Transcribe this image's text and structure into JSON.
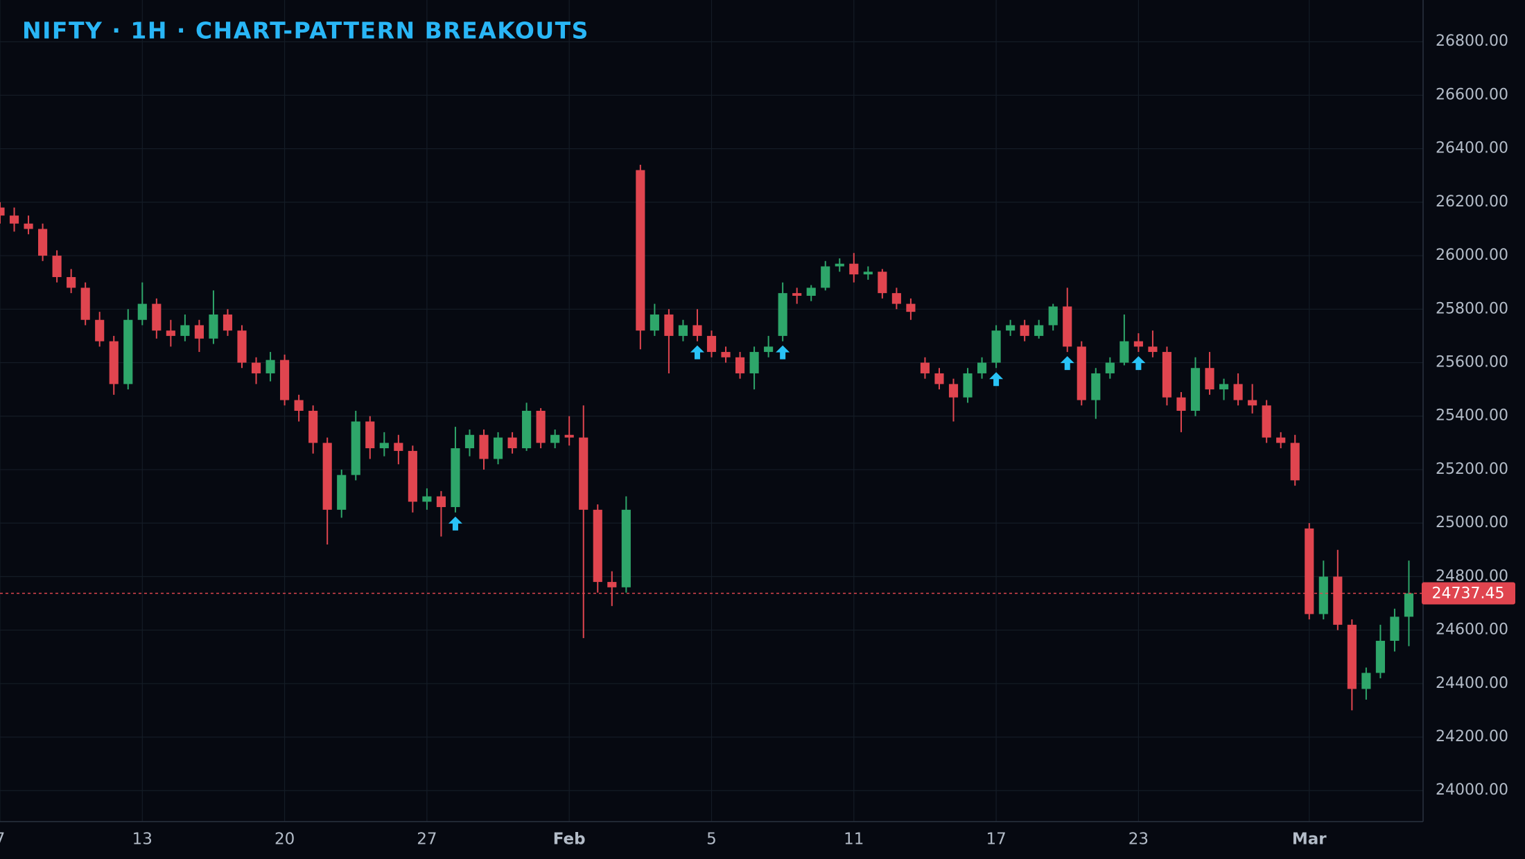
{
  "chart_data": {
    "type": "candlestick",
    "title": "NIFTY · 1H · CHART-PATTERN BREAKOUTS",
    "up_color": "#2ea66a",
    "down_color": "#e0454f",
    "signal_color": "#29c3f6",
    "xlim": [
      0,
      100
    ],
    "xticks": [
      {
        "value": 0,
        "label": "7"
      },
      {
        "value": 10,
        "label": "13"
      },
      {
        "value": 20,
        "label": "20"
      },
      {
        "value": 30,
        "label": "27"
      },
      {
        "value": 40,
        "label": "Feb"
      },
      {
        "value": 50,
        "label": "5"
      },
      {
        "value": 60,
        "label": "11"
      },
      {
        "value": 70,
        "label": "17"
      },
      {
        "value": 80,
        "label": "23"
      },
      {
        "value": 92,
        "label": "Mar"
      }
    ],
    "ylim": [
      23884,
      26956
    ],
    "yticks": [
      {
        "value": 24000,
        "label": "24000.00"
      },
      {
        "value": 24200,
        "label": "24200.00"
      },
      {
        "value": 24400,
        "label": "24400.00"
      },
      {
        "value": 24600,
        "label": "24600.00"
      },
      {
        "value": 24800,
        "label": "24800.00"
      },
      {
        "value": 25000,
        "label": "25000.00"
      },
      {
        "value": 25200,
        "label": "25200.00"
      },
      {
        "value": 25400,
        "label": "25400.00"
      },
      {
        "value": 25600,
        "label": "25600.00"
      },
      {
        "value": 25800,
        "label": "25800.00"
      },
      {
        "value": 26000,
        "label": "26000.00"
      },
      {
        "value": 26200,
        "label": "26200.00"
      },
      {
        "value": 26400,
        "label": "26400.00"
      },
      {
        "value": 26600,
        "label": "26600.00"
      },
      {
        "value": 26800,
        "label": "26800.00"
      }
    ],
    "grid": true,
    "ohlc": [
      [
        26180,
        26200,
        26120,
        26150
      ],
      [
        26150,
        26180,
        26090,
        26120
      ],
      [
        26120,
        26150,
        26080,
        26100
      ],
      [
        26100,
        26120,
        25980,
        26000
      ],
      [
        26000,
        26020,
        25900,
        25920
      ],
      [
        25920,
        25950,
        25860,
        25880
      ],
      [
        25880,
        25900,
        25740,
        25760
      ],
      [
        25760,
        25790,
        25660,
        25680
      ],
      [
        25680,
        25700,
        25480,
        25520
      ],
      [
        25520,
        25800,
        25500,
        25760
      ],
      [
        25760,
        25900,
        25740,
        25820
      ],
      [
        25820,
        25840,
        25690,
        25720
      ],
      [
        25720,
        25760,
        25660,
        25700
      ],
      [
        25700,
        25780,
        25680,
        25740
      ],
      [
        25740,
        25760,
        25640,
        25690
      ],
      [
        25690,
        25870,
        25670,
        25780
      ],
      [
        25780,
        25800,
        25700,
        25720
      ],
      [
        25720,
        25740,
        25580,
        25600
      ],
      [
        25600,
        25620,
        25520,
        25560
      ],
      [
        25560,
        25640,
        25530,
        25610
      ],
      [
        25610,
        25630,
        25440,
        25460
      ],
      [
        25460,
        25480,
        25380,
        25420
      ],
      [
        25420,
        25440,
        25260,
        25300
      ],
      [
        25300,
        25320,
        24920,
        25050
      ],
      [
        25050,
        25200,
        25020,
        25180
      ],
      [
        25180,
        25420,
        25160,
        25380
      ],
      [
        25380,
        25400,
        25240,
        25280
      ],
      [
        25280,
        25340,
        25250,
        25300
      ],
      [
        25300,
        25330,
        25220,
        25270
      ],
      [
        25270,
        25290,
        25040,
        25080
      ],
      [
        25080,
        25130,
        25050,
        25100
      ],
      [
        25100,
        25120,
        24950,
        25060
      ],
      [
        25060,
        25360,
        25040,
        25280
      ],
      [
        25280,
        25350,
        25250,
        25330
      ],
      [
        25330,
        25350,
        25200,
        25240
      ],
      [
        25240,
        25340,
        25220,
        25320
      ],
      [
        25320,
        25340,
        25260,
        25280
      ],
      [
        25280,
        25450,
        25270,
        25420
      ],
      [
        25420,
        25430,
        25280,
        25300
      ],
      [
        25300,
        25350,
        25280,
        25330
      ],
      [
        25330,
        25400,
        25290,
        25320
      ],
      [
        25320,
        25440,
        24570,
        25050
      ],
      [
        25050,
        25070,
        24740,
        24780
      ],
      [
        24780,
        24820,
        24690,
        24760
      ],
      [
        24760,
        25100,
        24740,
        25050
      ],
      [
        26320,
        26340,
        25650,
        25720
      ],
      [
        25720,
        25820,
        25700,
        25780
      ],
      [
        25780,
        25800,
        25560,
        25700
      ],
      [
        25700,
        25760,
        25680,
        25740
      ],
      [
        25740,
        25800,
        25680,
        25700
      ],
      [
        25700,
        25720,
        25620,
        25640
      ],
      [
        25640,
        25660,
        25600,
        25620
      ],
      [
        25620,
        25640,
        25540,
        25560
      ],
      [
        25560,
        25660,
        25500,
        25640
      ],
      [
        25640,
        25700,
        25620,
        25660
      ],
      [
        25700,
        25900,
        25680,
        25860
      ],
      [
        25860,
        25880,
        25820,
        25850
      ],
      [
        25850,
        25890,
        25830,
        25880
      ],
      [
        25880,
        25980,
        25870,
        25960
      ],
      [
        25960,
        25990,
        25940,
        25970
      ],
      [
        25970,
        26010,
        25900,
        25930
      ],
      [
        25930,
        25960,
        25910,
        25940
      ],
      [
        25940,
        25950,
        25840,
        25860
      ],
      [
        25860,
        25880,
        25800,
        25820
      ],
      [
        25820,
        25840,
        25760,
        25790
      ],
      [
        25600,
        25620,
        25540,
        25560
      ],
      [
        25560,
        25580,
        25500,
        25520
      ],
      [
        25520,
        25540,
        25380,
        25470
      ],
      [
        25470,
        25580,
        25450,
        25560
      ],
      [
        25560,
        25620,
        25540,
        25600
      ],
      [
        25600,
        25740,
        25580,
        25720
      ],
      [
        25720,
        25760,
        25700,
        25740
      ],
      [
        25740,
        25760,
        25680,
        25700
      ],
      [
        25700,
        25760,
        25690,
        25740
      ],
      [
        25740,
        25820,
        25720,
        25810
      ],
      [
        25810,
        25880,
        25640,
        25660
      ],
      [
        25660,
        25680,
        25440,
        25460
      ],
      [
        25460,
        25580,
        25390,
        25560
      ],
      [
        25560,
        25620,
        25540,
        25600
      ],
      [
        25600,
        25780,
        25590,
        25680
      ],
      [
        25680,
        25710,
        25640,
        25660
      ],
      [
        25660,
        25720,
        25620,
        25640
      ],
      [
        25640,
        25660,
        25440,
        25470
      ],
      [
        25470,
        25490,
        25340,
        25420
      ],
      [
        25420,
        25620,
        25400,
        25580
      ],
      [
        25580,
        25640,
        25480,
        25500
      ],
      [
        25500,
        25540,
        25460,
        25520
      ],
      [
        25520,
        25560,
        25440,
        25460
      ],
      [
        25460,
        25520,
        25410,
        25440
      ],
      [
        25440,
        25460,
        25300,
        25320
      ],
      [
        25320,
        25340,
        25280,
        25300
      ],
      [
        25300,
        25330,
        25140,
        25160
      ],
      [
        24980,
        25000,
        24640,
        24660
      ],
      [
        24660,
        24860,
        24640,
        24800
      ],
      [
        24800,
        24900,
        24600,
        24620
      ],
      [
        24620,
        24640,
        24300,
        24380
      ],
      [
        24380,
        24460,
        24340,
        24440
      ],
      [
        24440,
        24620,
        24420,
        24560
      ],
      [
        24560,
        24680,
        24520,
        24650
      ],
      [
        24650,
        24860,
        24540,
        24737.45
      ]
    ],
    "breakouts": [
      32,
      49,
      55,
      70,
      75,
      80
    ]
  }
}
